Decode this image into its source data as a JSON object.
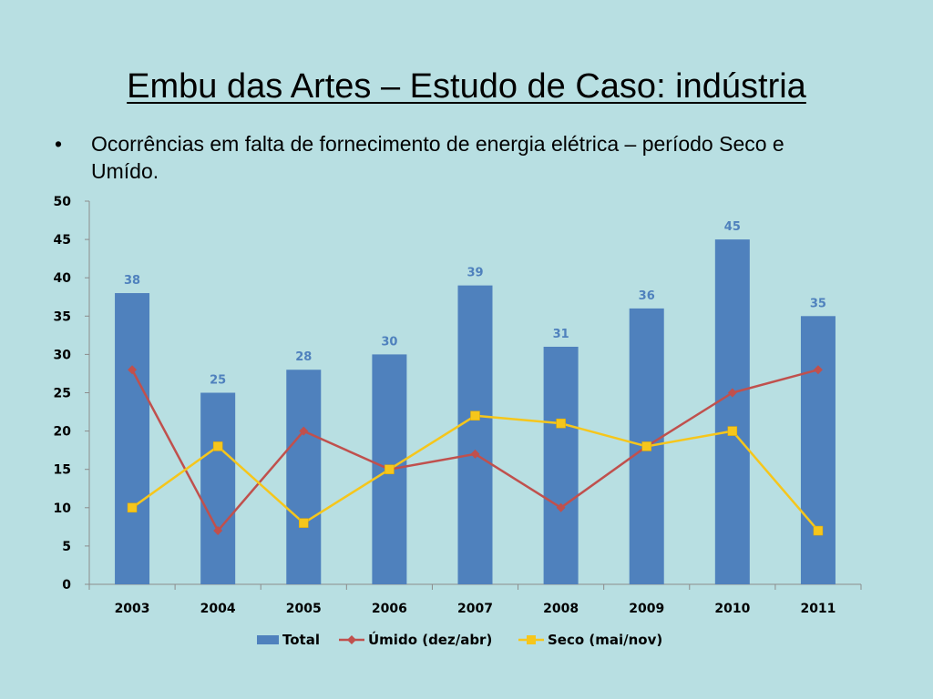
{
  "slide": {
    "title": "Embu das Artes – Estudo de Caso: indústria",
    "bullet_marker": "•",
    "bullet_text": "Ocorrências em falta de fornecimento de energia elétrica – período Seco e Umído."
  },
  "chart_data": {
    "type": "bar",
    "categories": [
      "2003",
      "2004",
      "2005",
      "2006",
      "2007",
      "2008",
      "2009",
      "2010",
      "2011"
    ],
    "series": [
      {
        "name": "Total",
        "kind": "bar",
        "color": "#4f81bd",
        "values": [
          38,
          25,
          28,
          30,
          39,
          31,
          36,
          45,
          35
        ]
      },
      {
        "name": "Úmido (dez/abr)",
        "kind": "line",
        "marker": "diamond",
        "color": "#c0504d",
        "values": [
          28,
          7,
          20,
          15,
          17,
          10,
          18,
          25,
          28
        ]
      },
      {
        "name": "Seco (mai/nov)",
        "kind": "line",
        "marker": "square",
        "color": "#f6c61b",
        "values": [
          10,
          18,
          8,
          15,
          22,
          21,
          18,
          20,
          7
        ]
      }
    ],
    "ylim": [
      0,
      50
    ],
    "yticks": [
      0,
      5,
      10,
      15,
      20,
      25,
      30,
      35,
      40,
      45,
      50
    ],
    "data_labels_on": "Total",
    "legend_position": "bottom",
    "grid": false
  }
}
